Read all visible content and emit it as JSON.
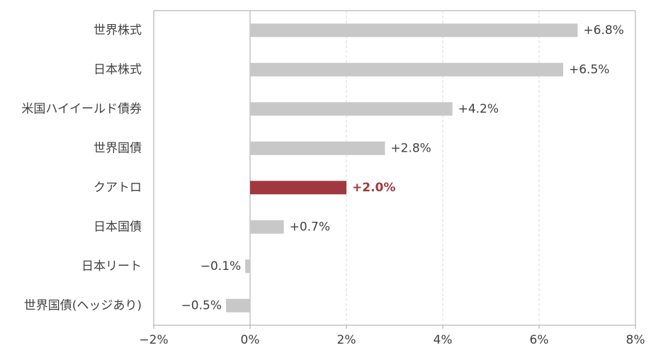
{
  "chart_data": {
    "type": "barh",
    "categories": [
      "世界株式",
      "日本株式",
      "米国ハイイールド債券",
      "世界国債",
      "クアトロ",
      "日本国債",
      "日本リート",
      "世界国債(ヘッジあり)"
    ],
    "values": [
      6.8,
      6.5,
      4.2,
      2.8,
      2.0,
      0.7,
      -0.1,
      -0.5
    ],
    "value_labels": [
      "+6.8%",
      "+6.5%",
      "+4.2%",
      "+2.8%",
      "+2.0%",
      "+0.7%",
      "−0.1%",
      "−0.5%"
    ],
    "colors": [
      "#c8c8c8",
      "#c8c8c8",
      "#c8c8c8",
      "#c8c8c8",
      "#a0393f",
      "#c8c8c8",
      "#c8c8c8",
      "#c8c8c8"
    ],
    "label_colors": [
      "#404040",
      "#404040",
      "#404040",
      "#404040",
      "#a0393f",
      "#404040",
      "#404040",
      "#404040"
    ],
    "xlim": [
      -2,
      8
    ],
    "xticks": [
      {
        "value": -2,
        "label": "−2%"
      },
      {
        "value": 0,
        "label": "0%"
      },
      {
        "value": 2,
        "label": "2%"
      },
      {
        "value": 4,
        "label": "4%"
      },
      {
        "value": 6,
        "label": "6%"
      },
      {
        "value": 8,
        "label": "8%"
      }
    ],
    "grid": true
  }
}
